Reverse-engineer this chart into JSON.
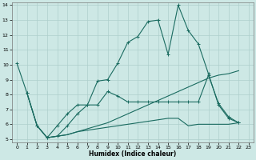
{
  "xlabel": "Humidex (Indice chaleur)",
  "xlim": [
    -0.5,
    23.5
  ],
  "ylim": [
    4.8,
    14.2
  ],
  "xticks": [
    0,
    1,
    2,
    3,
    4,
    5,
    6,
    7,
    8,
    9,
    10,
    11,
    12,
    13,
    14,
    15,
    16,
    17,
    18,
    19,
    20,
    21,
    22,
    23
  ],
  "yticks": [
    5,
    6,
    7,
    8,
    9,
    10,
    11,
    12,
    13,
    14
  ],
  "bg_color": "#cde8e5",
  "grid_color": "#aecfcc",
  "line_color": "#1a6b60",
  "line1_x": [
    0,
    1,
    2,
    3,
    4,
    5,
    6,
    7,
    8,
    9,
    10,
    11,
    12,
    13,
    14,
    15,
    16,
    17,
    18,
    19,
    20,
    21,
    22
  ],
  "line1_y": [
    10.1,
    8.1,
    5.9,
    5.1,
    5.9,
    6.7,
    7.3,
    7.3,
    8.9,
    9.0,
    10.1,
    11.5,
    11.9,
    12.9,
    13.0,
    10.7,
    14.0,
    12.3,
    11.4,
    9.4,
    7.3,
    6.4,
    6.1
  ],
  "line2_x": [
    1,
    2,
    3,
    4,
    5,
    6,
    7,
    8,
    9,
    10,
    11,
    12,
    13,
    14,
    15,
    16,
    17,
    18,
    19,
    20,
    21,
    22
  ],
  "line2_y": [
    8.1,
    5.9,
    5.1,
    5.2,
    5.9,
    6.7,
    7.3,
    7.3,
    8.2,
    7.9,
    7.5,
    7.5,
    7.5,
    7.5,
    7.5,
    7.5,
    7.5,
    7.5,
    9.3,
    7.4,
    6.5,
    6.1
  ],
  "line3_x": [
    1,
    2,
    3,
    4,
    5,
    6,
    7,
    8,
    9,
    10,
    11,
    12,
    13,
    14,
    15,
    16,
    17,
    18,
    19,
    20,
    21,
    22
  ],
  "line3_y": [
    8.1,
    5.9,
    5.1,
    5.2,
    5.3,
    5.5,
    5.6,
    5.7,
    5.8,
    5.9,
    6.0,
    6.1,
    6.2,
    6.3,
    6.4,
    6.4,
    5.9,
    6.0,
    6.0,
    6.0,
    6.0,
    6.1
  ],
  "line4_x": [
    3,
    4,
    5,
    6,
    7,
    8,
    9,
    10,
    11,
    12,
    13,
    14,
    15,
    16,
    17,
    18,
    19,
    20,
    21,
    22
  ],
  "line4_y": [
    5.1,
    5.2,
    5.3,
    5.5,
    5.7,
    5.9,
    6.1,
    6.4,
    6.7,
    7.0,
    7.3,
    7.6,
    7.9,
    8.2,
    8.5,
    8.8,
    9.1,
    9.3,
    9.4,
    9.6
  ]
}
